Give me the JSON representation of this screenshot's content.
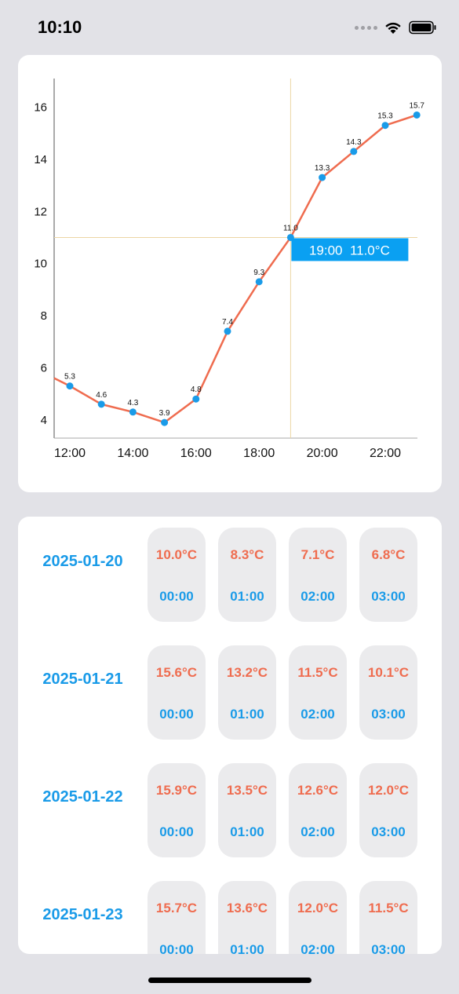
{
  "status_bar": {
    "time": "10:10",
    "icons": [
      "signal-dots-icon",
      "wifi-icon",
      "battery-icon"
    ]
  },
  "chart_data": {
    "type": "line",
    "x": [
      "12:00",
      "13:00",
      "14:00",
      "15:00",
      "16:00",
      "17:00",
      "18:00",
      "19:00",
      "20:00",
      "21:00",
      "22:00",
      "23:00"
    ],
    "values": [
      5.3,
      4.6,
      4.3,
      3.9,
      4.8,
      7.4,
      9.3,
      11.0,
      13.3,
      14.3,
      15.3,
      15.7
    ],
    "point_labels": [
      "5.3",
      "4.6",
      "4.3",
      "3.9",
      "4.8",
      "7.4",
      "9.3",
      "11.0",
      "13.3",
      "14.3",
      "15.3",
      "15.7"
    ],
    "x_tick_labels": [
      "12:00",
      "14:00",
      "16:00",
      "18:00",
      "20:00",
      "22:00"
    ],
    "y_ticks": [
      "4",
      "6",
      "8",
      "10",
      "12",
      "14",
      "16"
    ],
    "ylim": [
      3.3,
      17.1
    ],
    "line_start_value": 5.6,
    "line_color": "#ef6c4f",
    "point_color": "#1a9be8",
    "crosshair": {
      "x": "19:00",
      "value": 11.0,
      "label": "19:00  11.0°C",
      "color": "#ecd6a4",
      "label_bg": "#0aa0f2"
    }
  },
  "forecast": [
    {
      "date": "2025-01-20",
      "hours": [
        {
          "temp": "10.0°C",
          "time": "00:00"
        },
        {
          "temp": "8.3°C",
          "time": "01:00"
        },
        {
          "temp": "7.1°C",
          "time": "02:00"
        },
        {
          "temp": "6.8°C",
          "time": "03:00"
        }
      ]
    },
    {
      "date": "2025-01-21",
      "hours": [
        {
          "temp": "15.6°C",
          "time": "00:00"
        },
        {
          "temp": "13.2°C",
          "time": "01:00"
        },
        {
          "temp": "11.5°C",
          "time": "02:00"
        },
        {
          "temp": "10.1°C",
          "time": "03:00"
        }
      ]
    },
    {
      "date": "2025-01-22",
      "hours": [
        {
          "temp": "15.9°C",
          "time": "00:00"
        },
        {
          "temp": "13.5°C",
          "time": "01:00"
        },
        {
          "temp": "12.6°C",
          "time": "02:00"
        },
        {
          "temp": "12.0°C",
          "time": "03:00"
        }
      ]
    },
    {
      "date": "2025-01-23",
      "hours": [
        {
          "temp": "15.7°C",
          "time": "00:00"
        },
        {
          "temp": "13.6°C",
          "time": "01:00"
        },
        {
          "temp": "12.0°C",
          "time": "02:00"
        },
        {
          "temp": "11.5°C",
          "time": "03:00"
        }
      ]
    }
  ]
}
